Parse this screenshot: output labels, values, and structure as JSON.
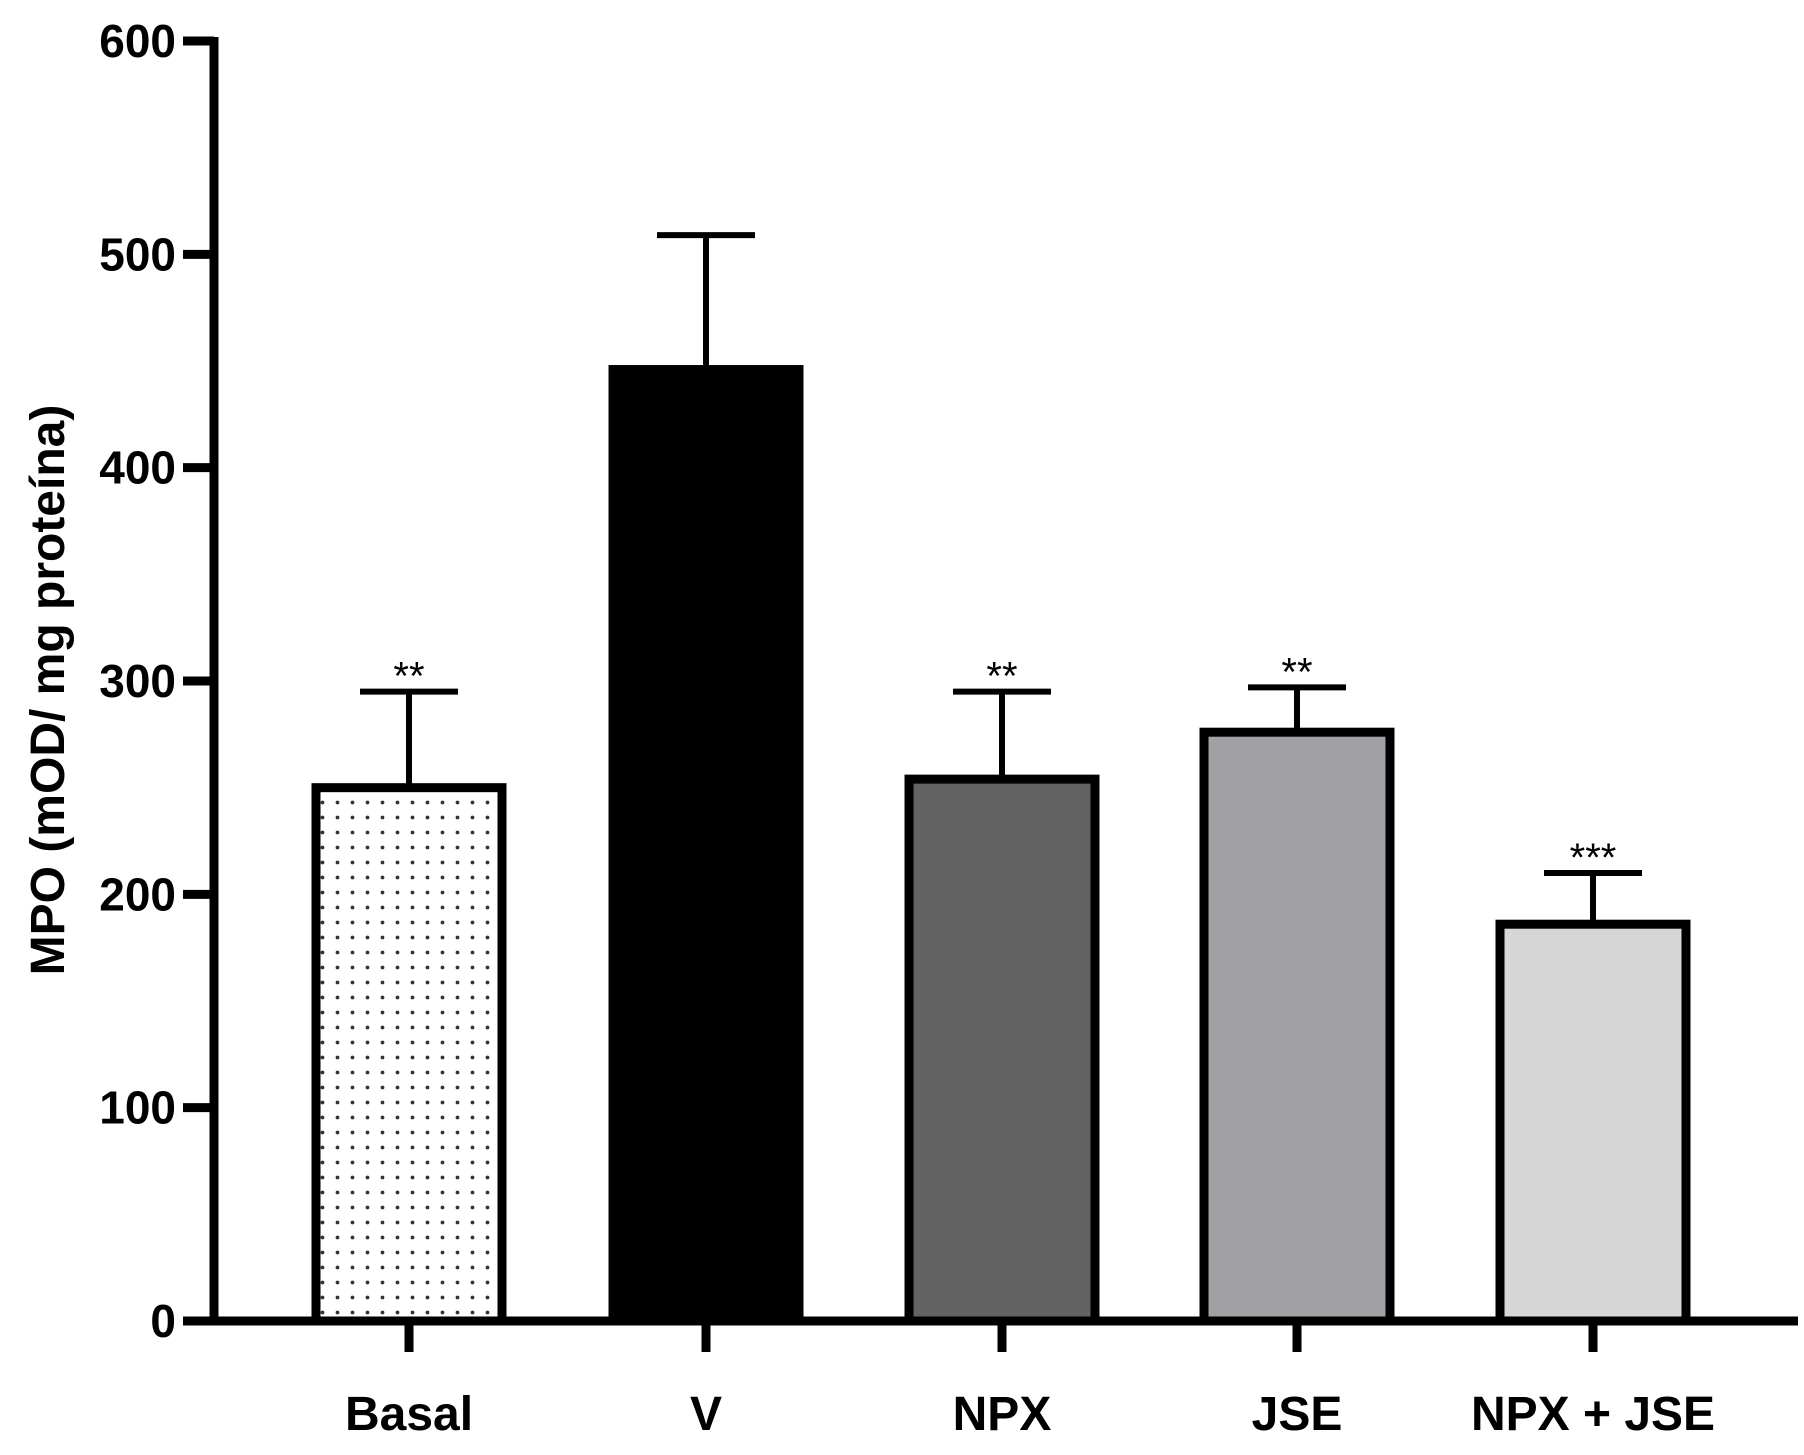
{
  "chart_data": {
    "type": "bar",
    "title": "",
    "xlabel": "",
    "ylabel": "MPO (mOD/ mg proteína)",
    "ylim": [
      0,
      600
    ],
    "yticks": [
      0,
      100,
      200,
      300,
      400,
      500,
      600
    ],
    "yticks_text": [
      "0",
      "100",
      "200",
      "300",
      "400",
      "500",
      "600"
    ],
    "grid": false,
    "categories": [
      "Basal",
      "V",
      "NPX",
      "JSE",
      "NPX + JSE"
    ],
    "values": [
      250,
      446,
      254,
      276,
      186
    ],
    "errors": [
      45,
      63,
      41,
      21,
      24
    ],
    "significance": [
      "**",
      "",
      "**",
      "**",
      "***"
    ],
    "colors": [
      "#ffffff",
      "#000000",
      "#636363",
      "#a1a1a5",
      "#d6d6d6"
    ],
    "patterns": [
      "dots",
      "solid",
      "solid",
      "solid",
      "solid"
    ]
  }
}
